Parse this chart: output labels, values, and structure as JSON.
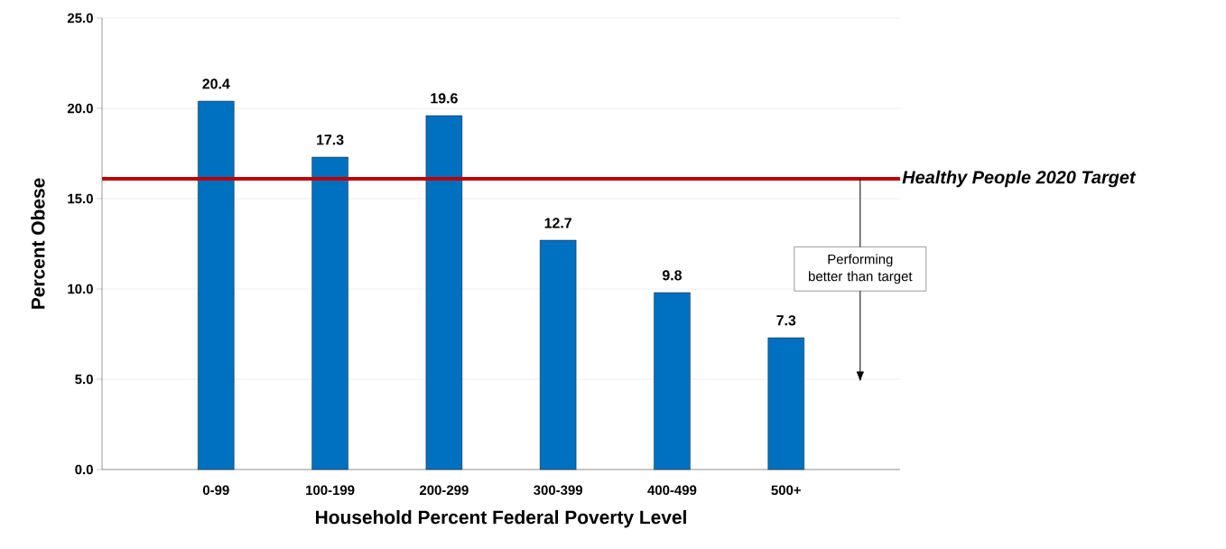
{
  "chart_data": {
    "type": "bar",
    "xlabel": "Household Percent Federal Poverty Level",
    "ylabel": "Percent Obese",
    "categories": [
      "0-99",
      "100-199",
      "200-299",
      "300-399",
      "400-499",
      "500+"
    ],
    "values": [
      20.4,
      17.3,
      19.6,
      12.7,
      9.8,
      7.3
    ],
    "color": "#0070c0",
    "data_labels": true,
    "ylim": [
      0,
      25
    ],
    "yticks": [
      {
        "value": 0,
        "label": "0.0"
      },
      {
        "value": 5,
        "label": "5.0"
      },
      {
        "value": 10,
        "label": "10.0"
      },
      {
        "value": 15,
        "label": "15.0"
      },
      {
        "value": 20,
        "label": "20.0"
      },
      {
        "value": 25,
        "label": "25.0"
      }
    ],
    "grid": "y",
    "ref_lines": [
      {
        "axis": "y",
        "value": 16.1,
        "label": "Healthy People 2020 Target",
        "color": "#c00000"
      }
    ],
    "annotations": [
      "Performing better than target"
    ]
  }
}
